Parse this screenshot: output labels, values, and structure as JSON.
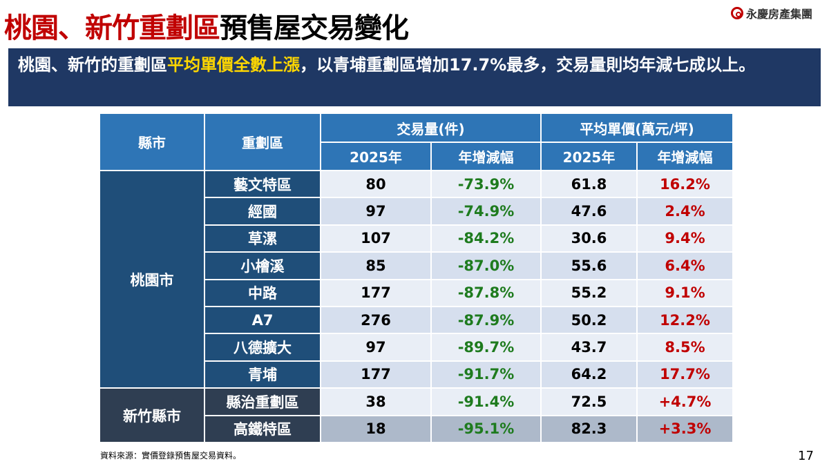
{
  "title": {
    "part1": "桃園、新竹重劃區",
    "part2": "預售屋交易變化"
  },
  "logo": {
    "text": "永慶房產集團"
  },
  "banner": {
    "pre": "桃園、新竹的重劃區",
    "highlight": "平均單價全數上漲",
    "post": "，以青埔重劃區增加17.7%最多，交易量則均年減七成以上。"
  },
  "table": {
    "headers": {
      "county": "縣市",
      "district": "重劃區",
      "volume": "交易量(件)",
      "price": "平均單價(萬元/坪)",
      "year": "2025年",
      "change": "年增減幅"
    },
    "groups": [
      {
        "county": "桃園市"
      },
      {
        "county": "新竹縣市"
      }
    ],
    "rows": [
      {
        "district": "藝文特區",
        "volume": "80",
        "volume_change": "-73.9%",
        "price": "61.8",
        "price_change": "16.2%"
      },
      {
        "district": "經國",
        "volume": "97",
        "volume_change": "-74.9%",
        "price": "47.6",
        "price_change": "2.4%"
      },
      {
        "district": "草漯",
        "volume": "107",
        "volume_change": "-84.2%",
        "price": "30.6",
        "price_change": "9.4%"
      },
      {
        "district": "小檜溪",
        "volume": "85",
        "volume_change": "-87.0%",
        "price": "55.6",
        "price_change": "6.4%"
      },
      {
        "district": "中路",
        "volume": "177",
        "volume_change": "-87.8%",
        "price": "55.2",
        "price_change": "9.1%"
      },
      {
        "district": "A7",
        "volume": "276",
        "volume_change": "-87.9%",
        "price": "50.2",
        "price_change": "12.2%"
      },
      {
        "district": "八德擴大",
        "volume": "97",
        "volume_change": "-89.7%",
        "price": "43.7",
        "price_change": "8.5%"
      },
      {
        "district": "青埔",
        "volume": "177",
        "volume_change": "-91.7%",
        "price": "64.2",
        "price_change": "17.7%"
      },
      {
        "district": "縣治重劃區",
        "volume": "38",
        "volume_change": "-91.4%",
        "price": "72.5",
        "price_change": "+4.7%"
      },
      {
        "district": "高鐵特區",
        "volume": "18",
        "volume_change": "-95.1%",
        "price": "82.3",
        "price_change": "+3.3%"
      }
    ]
  },
  "source": "資料來源：實價登錄預售屋交易資料。",
  "page_number": "17",
  "colors": {
    "header": "#2e75b6",
    "taoyuan": "#1f4e79",
    "hsinchu": "#2f3e52",
    "negative": "#1e7b1e",
    "positive": "#c00000",
    "title_red": "#c00000",
    "banner": "#1f3864"
  }
}
